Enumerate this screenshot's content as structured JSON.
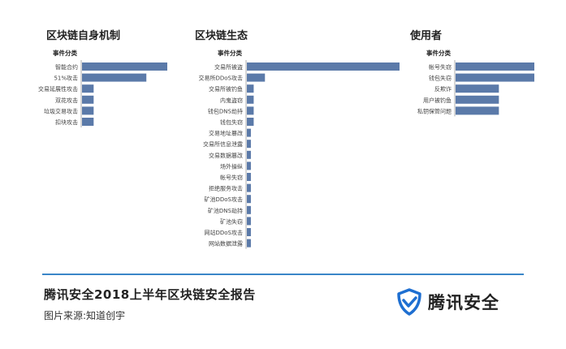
{
  "chart_data": [
    {
      "type": "bar",
      "orientation": "horizontal",
      "title": "区块链自身机制",
      "category_header": "事件分类",
      "categories": [
        "智能合约",
        "51%攻击",
        "交易延展性攻击",
        "双花攻击",
        "垃圾交易攻击",
        "扣块攻击"
      ],
      "values": [
        11,
        8.3,
        1.5,
        1.5,
        1.5,
        1.5
      ],
      "xlim": [
        0,
        11
      ]
    },
    {
      "type": "bar",
      "orientation": "horizontal",
      "title": "区块链生态",
      "category_header": "事件分类",
      "categories": [
        "交易所被盗",
        "交易所DDoS攻击",
        "交易所被钓鱼",
        "内鬼盗窃",
        "钱包DNS劫持",
        "钱包失窃",
        "交易地址篡改",
        "交易所信息泄露",
        "交易数据篡改",
        "场外操纵",
        "帐号失窃",
        "拒绝服务攻击",
        "矿池DDoS攻击",
        "矿池DNS劫持",
        "矿池失窃",
        "网站DDoS攻击",
        "网站数据泄露"
      ],
      "values": [
        38,
        4.5,
        1.7,
        1.7,
        1.7,
        1.7,
        1,
        1,
        1,
        1,
        1,
        1,
        1,
        1,
        1,
        1,
        1
      ],
      "xlim": [
        0,
        38
      ]
    },
    {
      "type": "bar",
      "orientation": "horizontal",
      "title": "使用者",
      "category_header": "事件分类",
      "categories": [
        "帐号失窃",
        "钱包失窃",
        "反欺诈",
        "用户被钓鱼",
        "私钥保管问题"
      ],
      "values": [
        10,
        10,
        5.5,
        5.5,
        5.5
      ],
      "xlim": [
        0,
        10
      ]
    }
  ],
  "footer": {
    "title": "腾讯安全2018上半年区块链安全报告",
    "source": "图片来源:知道创宇"
  },
  "brand": {
    "name": "腾讯安全",
    "logo_icon": "shield-check-icon",
    "logo_color": "#1e6fd1"
  },
  "colors": {
    "bar": "#5b7aa9",
    "divider": "#3a86c8"
  }
}
